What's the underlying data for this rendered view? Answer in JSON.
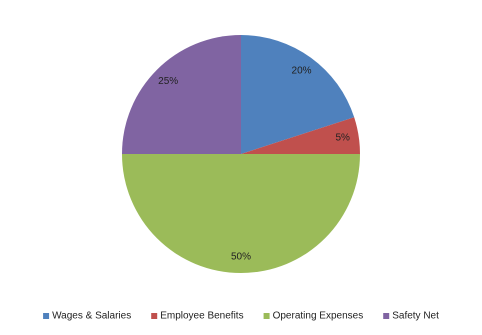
{
  "chart_data": {
    "type": "pie",
    "categories": [
      "Wages & Salaries",
      "Employee Benefits",
      "Operating Expenses",
      "Safety Net"
    ],
    "values": [
      20,
      5,
      50,
      25
    ],
    "value_labels": [
      "20%",
      "5%",
      "50%",
      "25%"
    ],
    "colors": [
      "#4f81bd",
      "#c0504d",
      "#9bbb59",
      "#8064a2"
    ],
    "legend": "bottom"
  }
}
